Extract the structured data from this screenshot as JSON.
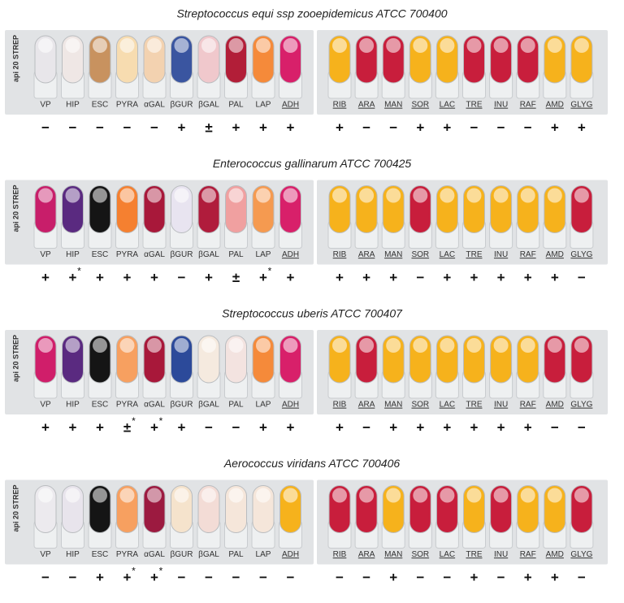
{
  "logo": "api 20 STREP",
  "test_labels": [
    "VP",
    "HIP",
    "ESC",
    "PYRA",
    "αGAL",
    "βGUR",
    "βGAL",
    "PAL",
    "LAP",
    "ADH",
    "RIB",
    "ARA",
    "MAN",
    "SOR",
    "LAC",
    "TRE",
    "INU",
    "RAF",
    "AMD",
    "GLYG"
  ],
  "underlined_from": 9,
  "strips": [
    {
      "title": "Streptococcus equi ssp zooepidemicus ATCC 700400",
      "wells": [
        "#e8e6ea",
        "#efe7e5",
        "#c8925f",
        "#f7dcb0",
        "#f3d2b0",
        "#3a55a0",
        "#f0c8cc",
        "#b21e38",
        "#f58a3a",
        "#d8206a",
        "#f6b21c",
        "#c81e3c",
        "#c81e3c",
        "#f6b21c",
        "#f6b21c",
        "#c81e3c",
        "#c81e3c",
        "#c81e3c",
        "#f6b21c",
        "#f6b21c"
      ],
      "results": [
        "−",
        "−",
        "−",
        "−",
        "−",
        "+",
        "±",
        "+",
        "+",
        "+",
        "+",
        "−",
        "−",
        "+",
        "+",
        "−",
        "−",
        "−",
        "+",
        "+"
      ]
    },
    {
      "title": "Enterococcus gallinarum ATCC 700425",
      "wells": [
        "#c81e6a",
        "#5a2a80",
        "#151515",
        "#f58030",
        "#a8183a",
        "#e8e4f0",
        "#b01c3c",
        "#f0a0a0",
        "#f59a50",
        "#d8206a",
        "#f6b21c",
        "#f6b21c",
        "#f6b21c",
        "#c81e3c",
        "#f6b21c",
        "#f6b21c",
        "#f6b21c",
        "#f6b21c",
        "#f6b21c",
        "#c81e3c"
      ],
      "results": [
        "+",
        {
          "sign": "+",
          "note": "*"
        },
        "+",
        "+",
        "+",
        "−",
        "+",
        "±",
        {
          "sign": "+",
          "note": "*"
        },
        "+",
        "+",
        "+",
        "+",
        "−",
        "+",
        "+",
        "+",
        "+",
        "+",
        "−"
      ]
    },
    {
      "title": "Streptococcus uberis ATCC 700407",
      "wells": [
        "#d01e6a",
        "#5a2a80",
        "#151515",
        "#f7a060",
        "#a8183a",
        "#2c4a9a",
        "#f5eadf",
        "#f3e3e0",
        "#f58a3a",
        "#d8206a",
        "#f6b21c",
        "#c81e3c",
        "#f6b21c",
        "#f6b21c",
        "#f6b21c",
        "#f6b21c",
        "#f6b21c",
        "#f6b21c",
        "#c81e3c",
        "#c81e3c"
      ],
      "results": [
        "+",
        "+",
        "+",
        {
          "sign": "±",
          "note": "*"
        },
        {
          "sign": "+",
          "note": "*"
        },
        "+",
        "−",
        "−",
        "+",
        "+",
        "+",
        "−",
        "+",
        "+",
        "+",
        "+",
        "+",
        "+",
        "−",
        "−"
      ]
    },
    {
      "title": "Aerococcus viridans ATCC 700406",
      "wells": [
        "#eceaee",
        "#e8e4ec",
        "#151515",
        "#f7a060",
        "#9c1a40",
        "#f5e3cc",
        "#f3dcd6",
        "#f5e6da",
        "#f5e6da",
        "#f6b21c",
        "#c81e3c",
        "#c81e3c",
        "#f6b21c",
        "#c81e3c",
        "#c81e3c",
        "#f6b21c",
        "#c81e3c",
        "#f6b21c",
        "#f6b21c",
        "#c81e3c"
      ],
      "results": [
        "−",
        "−",
        "+",
        {
          "sign": "+",
          "note": "*"
        },
        {
          "sign": "+",
          "note": "*"
        },
        "−",
        "−",
        "−",
        "−",
        "−",
        "−",
        "−",
        "+",
        "−",
        "−",
        "+",
        "−",
        "+",
        "+",
        "−"
      ]
    }
  ]
}
